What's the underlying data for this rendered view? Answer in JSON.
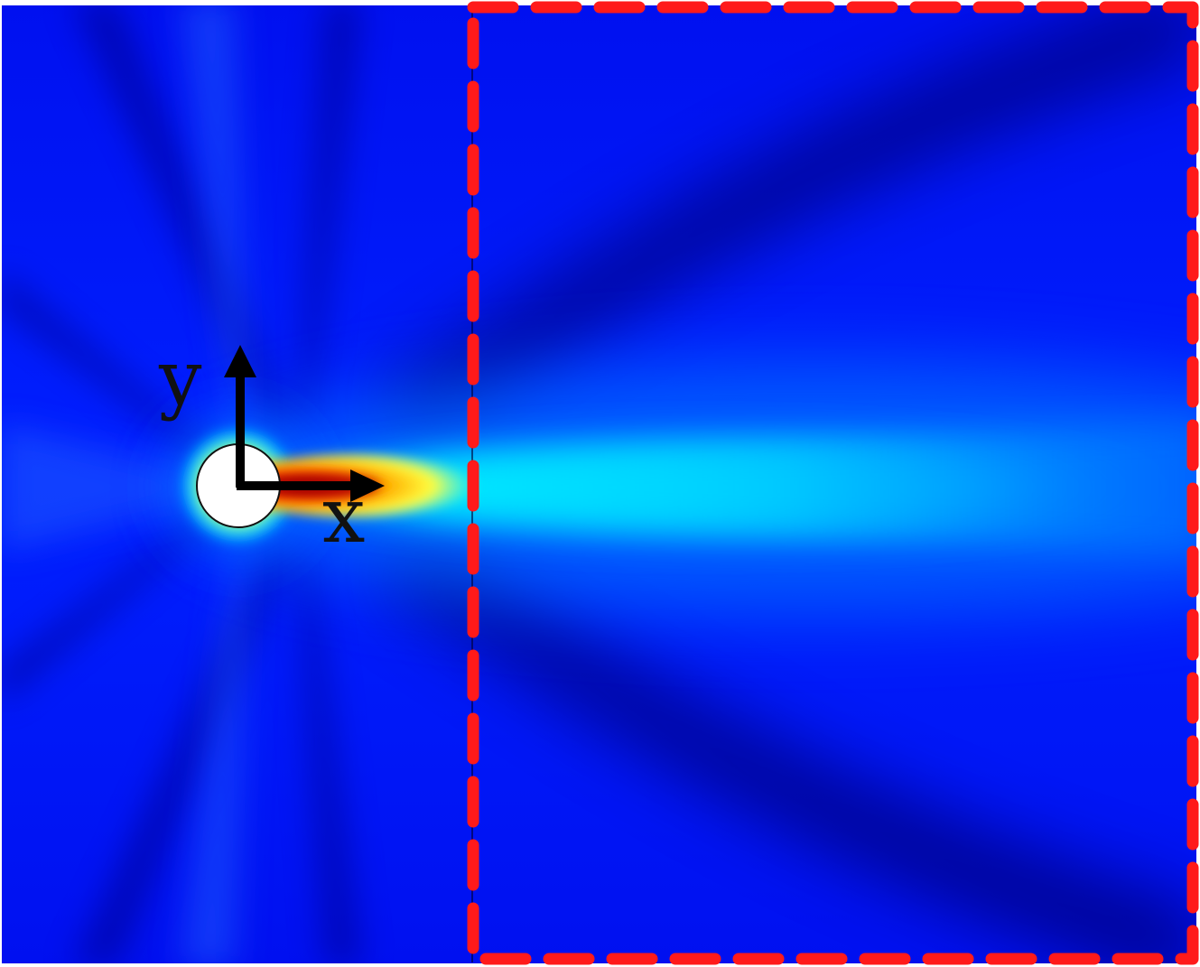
{
  "figure": {
    "axes": {
      "x_label": "x",
      "y_label": "y"
    },
    "colormap": [
      "#000080",
      "#0000cd",
      "#0000ff",
      "#0064ff",
      "#00c8ff",
      "#00ffff",
      "#80ff80",
      "#ffff00",
      "#ff8000",
      "#ff0000",
      "#800000"
    ],
    "colors": {
      "background_field": "#0000ff",
      "dark_band": "#00007a",
      "wake_core": "#ffff00",
      "wake_hot": "#b00000",
      "cylinder_fill": "#ffffff",
      "region_border": "#ff1a1a",
      "arrow": "#000000"
    },
    "icons": {
      "cylinder": "circle-obstacle-icon",
      "x_arrow": "arrow-right-icon",
      "y_arrow": "arrow-up-icon"
    }
  }
}
